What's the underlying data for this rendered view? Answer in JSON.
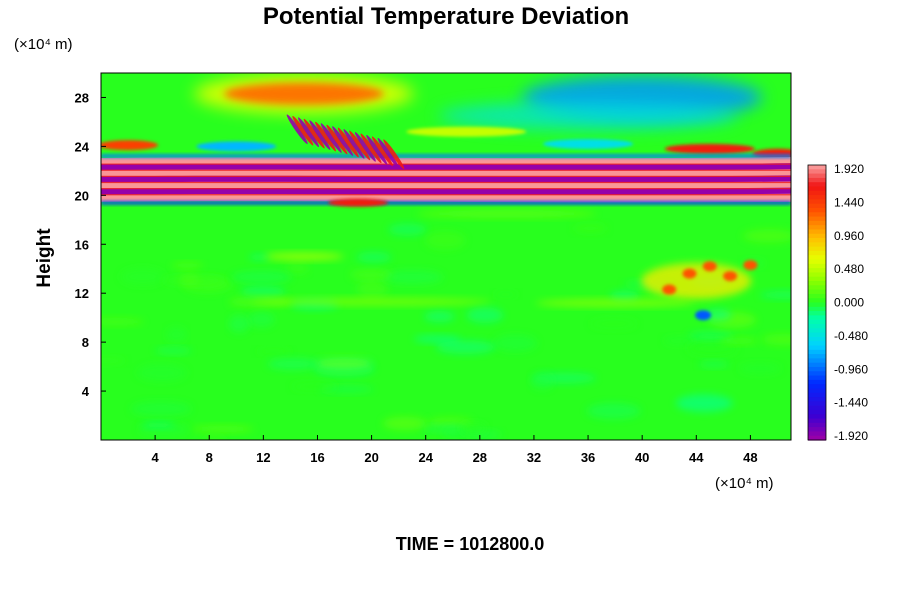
{
  "chart_data": {
    "type": "heatmap",
    "title": "Potential Temperature Deviation",
    "ylabel": "Height",
    "x_unit_label": "(×10⁴ m)",
    "y_unit_label": "(×10⁴ m)",
    "footer": "TIME = 1012800.0",
    "xlim": [
      0,
      51
    ],
    "ylim": [
      0,
      30
    ],
    "x_ticks": [
      4,
      8,
      12,
      16,
      20,
      24,
      28,
      32,
      36,
      40,
      44,
      48
    ],
    "y_ticks": [
      4,
      8,
      12,
      16,
      20,
      24,
      28
    ],
    "colorbar": {
      "min": -1.92,
      "max": 1.92,
      "tick_labels": [
        "1.920",
        "1.440",
        "0.960",
        "0.480",
        "0.000",
        "-0.480",
        "-0.960",
        "-1.440",
        "-1.920"
      ],
      "tick_values": [
        1.92,
        1.44,
        0.96,
        0.48,
        0.0,
        -0.48,
        -0.96,
        -1.44,
        -1.92
      ]
    },
    "background_value": 0.0,
    "features": [
      {
        "name": "stratospheric-band",
        "x_range": [
          0,
          51
        ],
        "y_center": 21.3,
        "alternating_values": [
          1.92,
          -1.92,
          1.92,
          -1.92,
          1.92,
          -1.92,
          1.92
        ]
      },
      {
        "name": "upper-warm-patch",
        "x_center": 15,
        "y_center": 28.3,
        "value": 1.2
      },
      {
        "name": "upper-right-warm-streak",
        "x_center": 45,
        "y_center": 23.8,
        "value": 1.4
      },
      {
        "name": "upper-right-cool-region",
        "x_center": 40,
        "y_center": 28,
        "value": -0.8
      },
      {
        "name": "wave-packet",
        "x_center": 18,
        "y_center": 24,
        "value_range": [
          -1.92,
          1.92
        ]
      },
      {
        "name": "lower-right-warm-patch",
        "x_center": 44,
        "y_center": 13,
        "value": 1.3
      },
      {
        "name": "lower-right-cool-spot",
        "x_center": 44.5,
        "y_center": 10.2,
        "value": -1.0
      }
    ]
  }
}
